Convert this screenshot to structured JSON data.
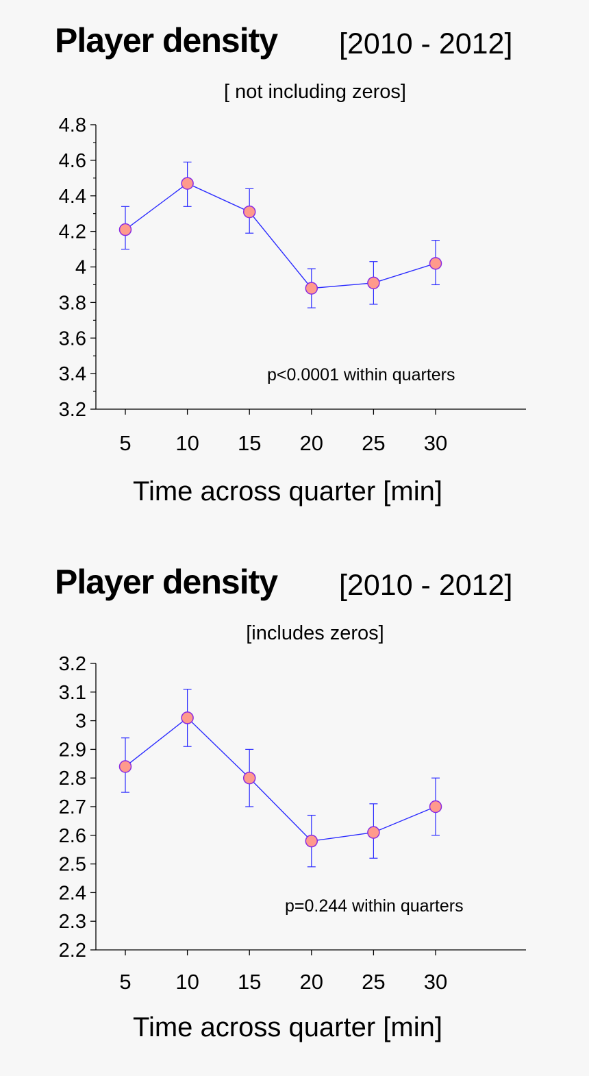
{
  "chart_data": [
    {
      "type": "line",
      "title": "Player density",
      "title_range": "[2010 - 2012]",
      "subtitle": "[ not including zeros]",
      "xlabel": "Time across quarter [min]",
      "ylabel": "",
      "x": [
        5,
        10,
        15,
        20,
        25,
        30
      ],
      "x_tick_labels": [
        "5",
        "10",
        "15",
        "20",
        "25",
        "30"
      ],
      "ylim": [
        3.2,
        4.8
      ],
      "y_ticks": [
        3.2,
        3.4,
        3.6,
        3.8,
        4.0,
        4.2,
        4.4,
        4.6,
        4.8
      ],
      "y_tick_labels": [
        "3.2",
        "3.4",
        "3.6",
        "3.8",
        "4",
        "4.2",
        "4.4",
        "4.6",
        "4.8"
      ],
      "series": [
        {
          "values": [
            4.21,
            4.47,
            4.31,
            3.88,
            3.91,
            4.02
          ],
          "error_low": [
            4.1,
            4.34,
            4.19,
            3.77,
            3.79,
            3.9
          ],
          "error_high": [
            4.34,
            4.59,
            4.44,
            3.99,
            4.03,
            4.15
          ],
          "line_color": "#2b2bff",
          "marker_fill": "#ff9a8c",
          "marker_edge": "#8a2be2"
        }
      ],
      "annotation": "p<0.0001 within quarters",
      "grid": false
    },
    {
      "type": "line",
      "title": "Player density",
      "title_range": "[2010 - 2012]",
      "subtitle": "[includes zeros]",
      "xlabel": "Time across quarter [min]",
      "ylabel": "",
      "x": [
        5,
        10,
        15,
        20,
        25,
        30
      ],
      "x_tick_labels": [
        "5",
        "10",
        "15",
        "20",
        "25",
        "30"
      ],
      "ylim": [
        2.2,
        3.2
      ],
      "y_ticks": [
        2.2,
        2.3,
        2.4,
        2.5,
        2.6,
        2.7,
        2.8,
        2.9,
        3.0,
        3.1,
        3.2
      ],
      "y_tick_labels": [
        "2.2",
        "2.3",
        "2.4",
        "2.5",
        "2.6",
        "2.7",
        "2.8",
        "2.9",
        "3",
        "3.1",
        "3.2"
      ],
      "series": [
        {
          "values": [
            2.84,
            3.01,
            2.8,
            2.58,
            2.61,
            2.7
          ],
          "error_low": [
            2.75,
            2.91,
            2.7,
            2.49,
            2.52,
            2.6
          ],
          "error_high": [
            2.94,
            3.11,
            2.9,
            2.67,
            2.71,
            2.8
          ],
          "line_color": "#2b2bff",
          "marker_fill": "#ff9a8c",
          "marker_edge": "#8a2be2"
        }
      ],
      "annotation": "p=0.244 within quarters",
      "grid": false
    }
  ]
}
